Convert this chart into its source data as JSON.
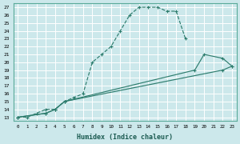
{
  "xlabel": "Humidex (Indice chaleur)",
  "xlim": [
    -0.5,
    23.5
  ],
  "ylim": [
    12.5,
    27.5
  ],
  "xticks": [
    0,
    1,
    2,
    3,
    4,
    5,
    6,
    7,
    8,
    9,
    10,
    11,
    12,
    13,
    14,
    15,
    16,
    17,
    18,
    19,
    20,
    21,
    22,
    23
  ],
  "yticks": [
    13,
    14,
    15,
    16,
    17,
    18,
    19,
    20,
    21,
    22,
    23,
    24,
    25,
    26,
    27
  ],
  "bg_color": "#cce8eb",
  "line_color": "#2e7d6e",
  "grid_color": "#ffffff",
  "main_curve_x": [
    0,
    1,
    2,
    3,
    4,
    5,
    6,
    7,
    8,
    9,
    10,
    11,
    12,
    13,
    14,
    15,
    16,
    17,
    18
  ],
  "main_curve_y": [
    13,
    13,
    13.5,
    14,
    14,
    15,
    15.5,
    16,
    20,
    21,
    22,
    24,
    26,
    27,
    27,
    27,
    26.5,
    26.5,
    23
  ],
  "line1_x": [
    0,
    3,
    4,
    5,
    19,
    20,
    22,
    23
  ],
  "line1_y": [
    13,
    13.5,
    14,
    15,
    19,
    21,
    20.5,
    19.5
  ],
  "line2_x": [
    0,
    3,
    4,
    5,
    22,
    23
  ],
  "line2_y": [
    13,
    13.5,
    14,
    15,
    19,
    19.5
  ],
  "markers_main": true,
  "markers_line1_x": [
    0,
    3,
    4,
    5,
    19,
    20,
    22,
    23
  ],
  "markers_line1_y": [
    13,
    13.5,
    14,
    15,
    19,
    21,
    20.5,
    19.5
  ]
}
